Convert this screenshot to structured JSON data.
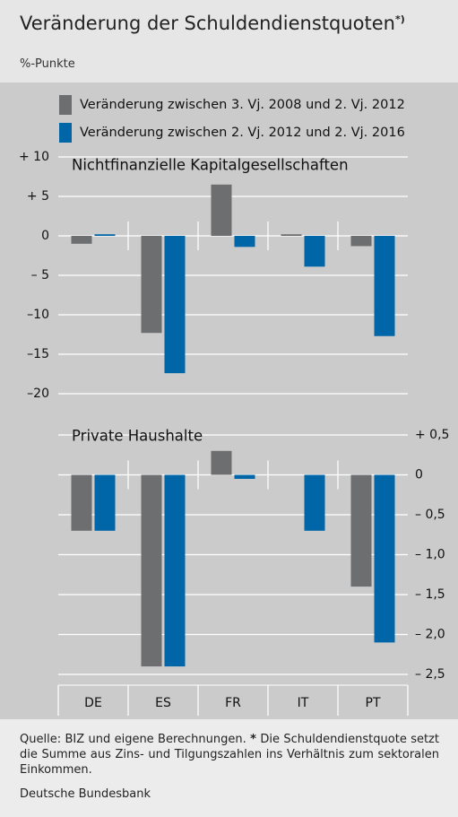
{
  "header": {
    "title": "Veränderung der Schuldendienstquoten",
    "title_note": "*)",
    "subtitle": "%-Punkte"
  },
  "chart_data": [
    {
      "type": "bar",
      "title": "Nichtfinanzielle Kapitalgesellschaften",
      "series": [
        {
          "name": "Veränderung zwischen 3. Vj. 2008 und 2. Vj. 2012",
          "color": "#6d6e70",
          "values": [
            -1,
            -12.3,
            6.5,
            0.2,
            -1.3
          ]
        },
        {
          "name": "Veränderung zwischen 2. Vj. 2012 und 2. Vj. 2016",
          "color": "#0066a8",
          "values": [
            0.2,
            -17.4,
            -1.4,
            -3.9,
            -12.7
          ]
        }
      ],
      "ylim": [
        -20,
        10
      ],
      "yticks": [
        {
          "value": 10,
          "label": "+ 10"
        },
        {
          "value": 5,
          "label": "+ 5"
        },
        0,
        {
          "value": -5,
          "label": "– 5"
        },
        {
          "value": -10,
          "label": "–10"
        },
        {
          "value": -15,
          "label": "–15"
        },
        {
          "value": -20,
          "label": "–20"
        }
      ],
      "grid": true
    },
    {
      "type": "bar",
      "title": "Private Haushalte",
      "categories": [
        "DE",
        "ES",
        "FR",
        "IT",
        "PT"
      ],
      "series": [
        {
          "color": "#6d6e70",
          "values": [
            -0.7,
            -2.4,
            0.3,
            0,
            -1.4
          ]
        },
        {
          "color": "#0066a8",
          "values": [
            -0.7,
            -2.4,
            -0.05,
            -0.7,
            -2.1
          ]
        }
      ],
      "ylim": [
        -2.5,
        0.5
      ],
      "yticks": [
        {
          "value": 0.5,
          "label": "+ 0,5"
        },
        0,
        {
          "value": -0.5,
          "label": "– 0,5"
        },
        {
          "value": -1,
          "label": "– 1,0"
        },
        {
          "value": -1.5,
          "label": "– 1,5"
        },
        {
          "value": -2,
          "label": "– 2,0"
        },
        {
          "value": -2.5,
          "label": "– 2,5"
        }
      ],
      "grid": true
    }
  ],
  "footer": {
    "source": "Quelle: BIZ und eigene Berechnungen.",
    "asterisk": "*",
    "note": "Die Schuldendienstquote setzt die Summe aus Zins- und Tilgungszahlen ins Verhältnis zum sektoralen Einkommen.",
    "publisher": "Deutsche Bundesbank"
  }
}
